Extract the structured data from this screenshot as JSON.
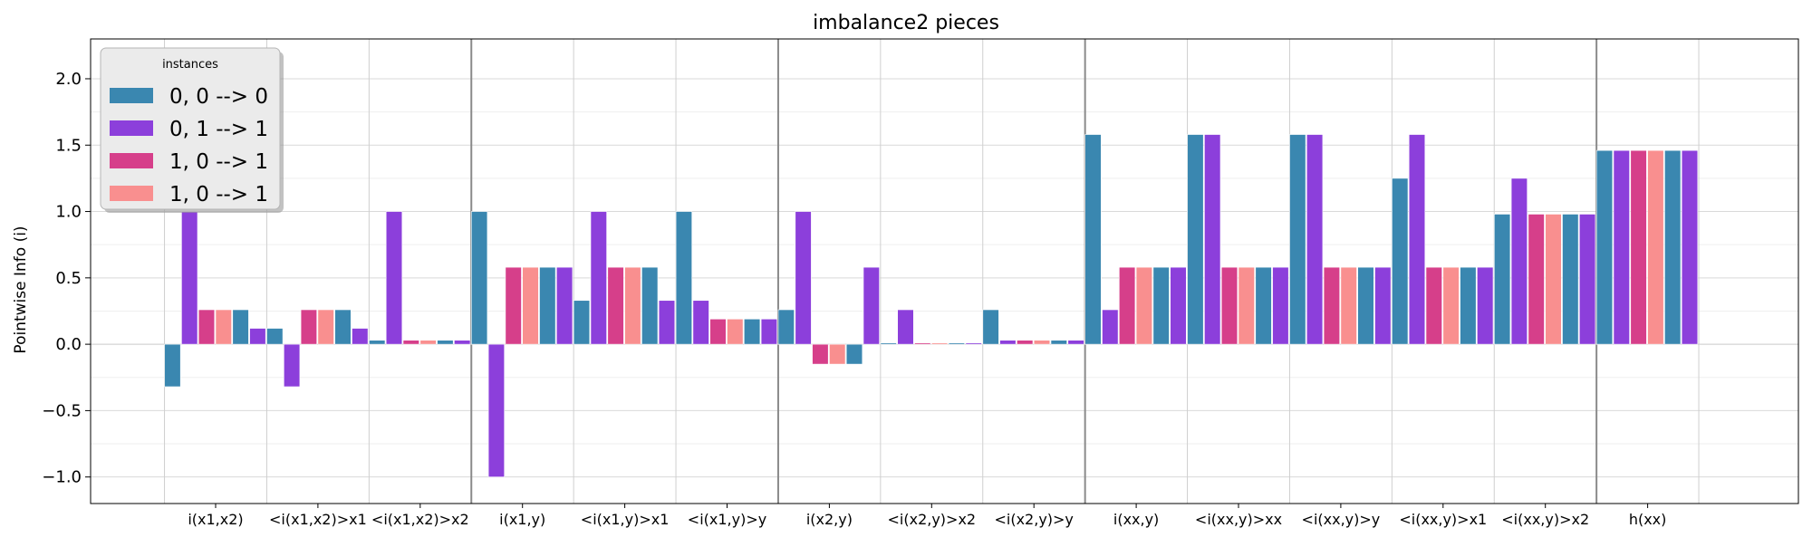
{
  "chart_data": {
    "type": "bar",
    "title": "imbalance2 pieces",
    "xlabel": "",
    "ylabel": "Pointwise Info (i)",
    "ylim": [
      -1.2,
      2.3
    ],
    "yticks": [
      2.0,
      1.5,
      1.0,
      0.5,
      0.0,
      -0.5,
      -1.0
    ],
    "ytick_labels": [
      "2.0",
      "1.5",
      "1.0",
      "0.5",
      "0.0",
      "−0.5",
      "−1.0"
    ],
    "grid": true,
    "legend": {
      "title": "instances",
      "placement": "upper-left",
      "entries": [
        "0, 0 --> 0",
        "0, 1 --> 1",
        "1, 0 --> 1",
        "1, 0 --> 1"
      ]
    },
    "categories": [
      "i(x1,x2)",
      "<i(x1,x2)>x1",
      "<i(x1,x2)>x2",
      "i(x1,y)",
      "<i(x1,y)>x1",
      "<i(x1,y)>y",
      "i(x2,y)",
      "<i(x2,y)>x2",
      "<i(x2,y)>y",
      "i(xx,y)",
      "<i(xx,y)>xx",
      "<i(xx,y)>y",
      "<i(xx,y)>x1",
      "<i(xx,y)>x2",
      "h(xx)"
    ],
    "group_boundaries_after": [
      2,
      5,
      8,
      13
    ],
    "series": [
      {
        "name": "0, 0 --> 0",
        "color": "#3a87b0",
        "values": [
          -0.32,
          0.12,
          0.03,
          1.0,
          0.33,
          1.0,
          0.26,
          0.01,
          0.26,
          1.58,
          1.58,
          1.58,
          1.25,
          0.98,
          1.46
        ]
      },
      {
        "name": "0, 1 --> 1",
        "color": "#8c3fdb",
        "values": [
          1.0,
          -0.32,
          1.0,
          -1.0,
          1.0,
          0.33,
          1.0,
          0.26,
          0.03,
          0.26,
          1.58,
          1.58,
          1.58,
          1.25,
          1.46
        ]
      },
      {
        "name": "1, 0 --> 1",
        "color": "#d63f8a",
        "values": [
          0.26,
          0.26,
          0.03,
          0.58,
          0.58,
          0.19,
          -0.15,
          0.01,
          0.03,
          0.58,
          0.58,
          0.58,
          0.58,
          0.98,
          1.46
        ]
      },
      {
        "name": "1, 0 --> 1",
        "color": "#f98f8f",
        "values": [
          0.26,
          0.26,
          0.03,
          0.58,
          0.58,
          0.19,
          -0.15,
          0.01,
          0.03,
          0.58,
          0.58,
          0.58,
          0.58,
          0.98,
          1.46
        ]
      },
      {
        "name": "0, 0 --> 0",
        "color": "#3a87b0",
        "values": [
          0.26,
          0.26,
          0.03,
          0.58,
          0.58,
          0.19,
          -0.15,
          0.01,
          0.03,
          0.58,
          0.58,
          0.58,
          0.58,
          0.98,
          1.46
        ]
      },
      {
        "name": "0, 1 --> 1",
        "color": "#8c3fdb",
        "values": [
          0.12,
          0.12,
          0.03,
          0.58,
          0.33,
          0.19,
          0.58,
          0.01,
          0.03,
          0.58,
          0.58,
          0.58,
          0.58,
          0.98,
          1.46
        ]
      }
    ]
  }
}
